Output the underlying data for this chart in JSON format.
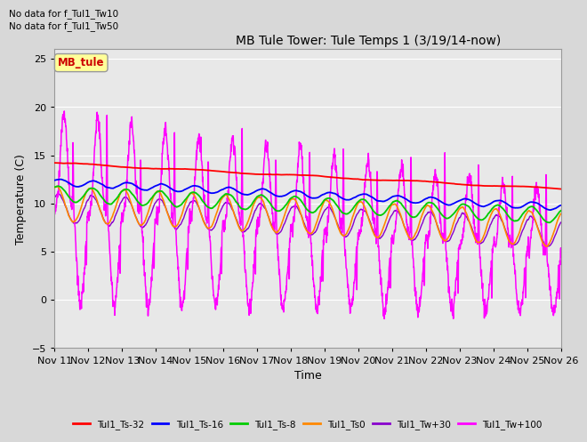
{
  "title": "MB Tule Tower: Tule Temps 1 (3/19/14-now)",
  "xlabel": "Time",
  "ylabel": "Temperature (C)",
  "no_data_texts": [
    "No data for f_Tul1_Tw10",
    "No data for f_Tul1_Tw50"
  ],
  "legend_box_label": "MB_tule",
  "legend_box_color": "#cc0000",
  "legend_box_bg": "#ffff99",
  "ylim": [
    -5,
    26
  ],
  "xlim_days": 15,
  "x_tick_labels": [
    "Nov 11",
    "Nov 12",
    "Nov 13",
    "Nov 14",
    "Nov 15",
    "Nov 16",
    "Nov 17",
    "Nov 18",
    "Nov 19",
    "Nov 20",
    "Nov 21",
    "Nov 22",
    "Nov 23",
    "Nov 24",
    "Nov 25",
    "Nov 26"
  ],
  "bg_color": "#d8d8d8",
  "ax_bg_color": "#e8e8e8",
  "grid_color": "#ffffff",
  "series": [
    {
      "label": "Tul1_Ts-32",
      "color": "#ff0000"
    },
    {
      "label": "Tul1_Ts-16",
      "color": "#0000ff"
    },
    {
      "label": "Tul1_Ts-8",
      "color": "#00cc00"
    },
    {
      "label": "Tul1_Ts0",
      "color": "#ff8800"
    },
    {
      "label": "Tul1_Tw+30",
      "color": "#8800cc"
    },
    {
      "label": "Tul1_Tw+100",
      "color": "#ff00ff"
    }
  ]
}
